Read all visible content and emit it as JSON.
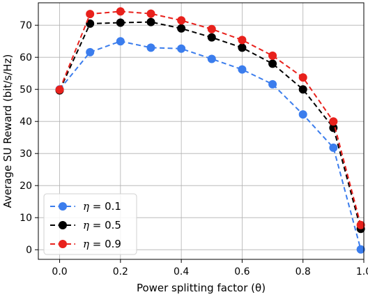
{
  "chart_data": {
    "type": "line",
    "xlabel": "Power splitting factor (θ)",
    "ylabel": "Average SU Reward (bit/s/Hz)",
    "xlim": [
      -0.07,
      1.0
    ],
    "ylim": [
      -3,
      77
    ],
    "xticks": [
      0.0,
      0.2,
      0.4,
      0.6,
      0.8,
      1.0
    ],
    "xtick_labels": [
      "0.0",
      "0.2",
      "0.4",
      "0.6",
      "0.8",
      "1.0"
    ],
    "yticks": [
      0,
      10,
      20,
      30,
      40,
      50,
      60,
      70
    ],
    "ytick_labels": [
      "0",
      "10",
      "20",
      "30",
      "40",
      "50",
      "60",
      "70"
    ],
    "grid": true,
    "legend_position": "bottom-left",
    "x": [
      0.0,
      0.1,
      0.2,
      0.3,
      0.4,
      0.5,
      0.6,
      0.7,
      0.8,
      0.9,
      0.99
    ],
    "series": [
      {
        "name": "η = 0.1",
        "legend_symbol": "η",
        "legend_value": "= 0.1",
        "color": "#3b7ded",
        "values": [
          50.0,
          61.6,
          65.0,
          63.0,
          62.7,
          59.5,
          56.2,
          51.6,
          42.2,
          31.8,
          0.1
        ]
      },
      {
        "name": "η = 0.5",
        "legend_symbol": "η",
        "legend_value": "= 0.5",
        "color": "#000000",
        "values": [
          49.7,
          70.5,
          70.8,
          71.0,
          69.0,
          66.2,
          63.0,
          58.0,
          50.0,
          38.0,
          6.5
        ]
      },
      {
        "name": "η = 0.9",
        "legend_symbol": "η",
        "legend_value": "= 0.9",
        "color": "#e8211c",
        "values": [
          49.9,
          73.5,
          74.3,
          73.6,
          71.5,
          68.8,
          65.4,
          60.5,
          53.7,
          40.0,
          7.7
        ]
      }
    ]
  }
}
